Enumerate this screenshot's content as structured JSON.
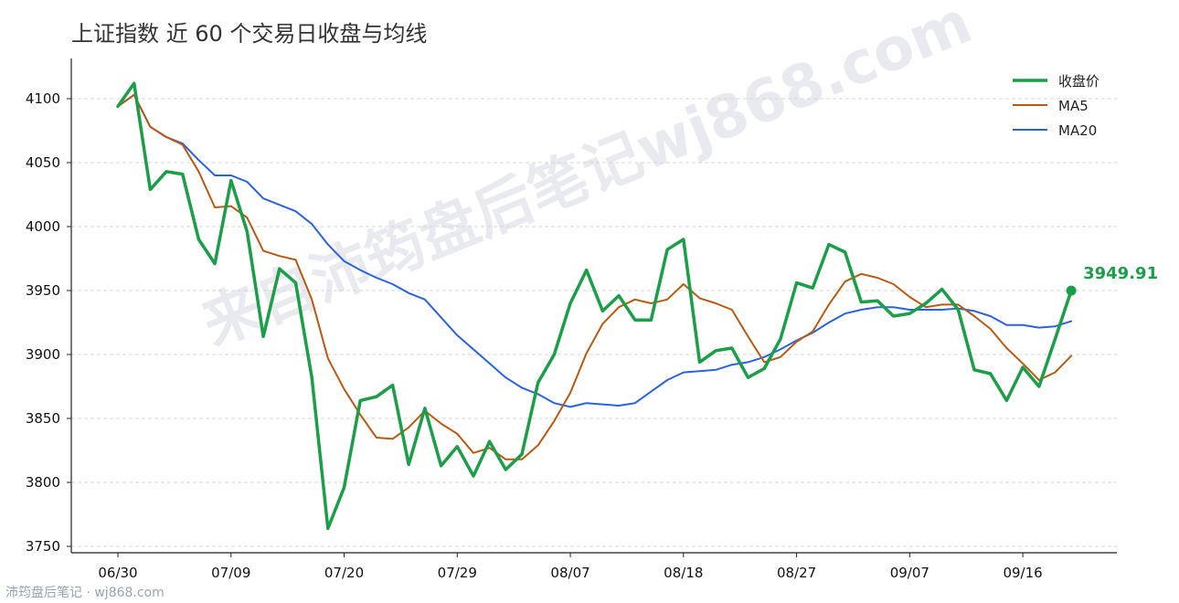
{
  "chart_data": {
    "type": "line",
    "title": "上证指数 近 60 个交易日收盘与均线",
    "xlabel": "",
    "ylabel": "",
    "ylim": [
      3745,
      4130
    ],
    "yticks": [
      3750,
      3800,
      3850,
      3900,
      3950,
      4000,
      4050,
      4100
    ],
    "x_tick_labels": [
      {
        "index": 0,
        "label": "06/30"
      },
      {
        "index": 7,
        "label": "07/09"
      },
      {
        "index": 14,
        "label": "07/20"
      },
      {
        "index": 21,
        "label": "07/29"
      },
      {
        "index": 28,
        "label": "08/07"
      },
      {
        "index": 35,
        "label": "08/18"
      },
      {
        "index": 42,
        "label": "08/27"
      },
      {
        "index": 49,
        "label": "09/07"
      },
      {
        "index": 56,
        "label": "09/16"
      }
    ],
    "legend_position": "top-right",
    "grid": "horizontal dashed",
    "series": [
      {
        "name": "收盘价",
        "color": "#1a9e48",
        "width": 3.5,
        "values": [
          4094,
          4112,
          4029,
          4043,
          4041,
          3990,
          3971,
          4036,
          3996,
          3914,
          3967,
          3956,
          3882,
          3764,
          3796,
          3864,
          3867,
          3876,
          3814,
          3858,
          3813,
          3828,
          3805,
          3832,
          3810,
          3822,
          3878,
          3900,
          3940,
          3966,
          3934,
          3946,
          3927,
          3927,
          3982,
          3990,
          3894,
          3903,
          3905,
          3882,
          3889,
          3912,
          3956,
          3952,
          3986,
          3980,
          3941,
          3942,
          3930,
          3932,
          3940,
          3951,
          3935,
          3888,
          3885,
          3864,
          3890,
          3875,
          3912,
          3949.91
        ]
      },
      {
        "name": "MA5",
        "color": "#b85a12",
        "width": 2,
        "values": [
          4094,
          4103,
          4078,
          4070,
          4064,
          4043,
          4015,
          4016,
          4007,
          3981,
          3977,
          3974,
          3943,
          3897,
          3873,
          3853,
          3835,
          3834,
          3843,
          3856,
          3846,
          3838,
          3823,
          3827,
          3818,
          3818,
          3829,
          3848,
          3870,
          3901,
          3924,
          3937,
          3943,
          3940,
          3943,
          3955,
          3944,
          3940,
          3935,
          3914,
          3894,
          3898,
          3910,
          3918,
          3939,
          3957,
          3963,
          3960,
          3955,
          3945,
          3937,
          3939,
          3939,
          3930,
          3920,
          3905,
          3893,
          3880,
          3886,
          3899
        ]
      },
      {
        "name": "MA20",
        "color": "#2b62e0",
        "width": 2,
        "values": [
          4094,
          4103,
          4078,
          4070,
          4065,
          4052,
          4040,
          4040,
          4035,
          4022,
          4017,
          4012,
          4002,
          3986,
          3973,
          3966,
          3960,
          3955,
          3948,
          3943,
          3929,
          3915,
          3904,
          3893,
          3882,
          3874,
          3869,
          3862,
          3859,
          3862,
          3861,
          3860,
          3862,
          3871,
          3880,
          3886,
          3887,
          3888,
          3892,
          3894,
          3898,
          3904,
          3911,
          3917,
          3925,
          3932,
          3935,
          3937,
          3937,
          3935,
          3935,
          3935,
          3936,
          3934,
          3930,
          3923,
          3923,
          3921,
          3922,
          3926
        ]
      }
    ],
    "end_label": {
      "series": "收盘价",
      "text": "3949.91"
    }
  },
  "watermark": "来自沛筠盘后笔记wj868.com",
  "footer": "沛筠盘后笔记 · wj868.com"
}
